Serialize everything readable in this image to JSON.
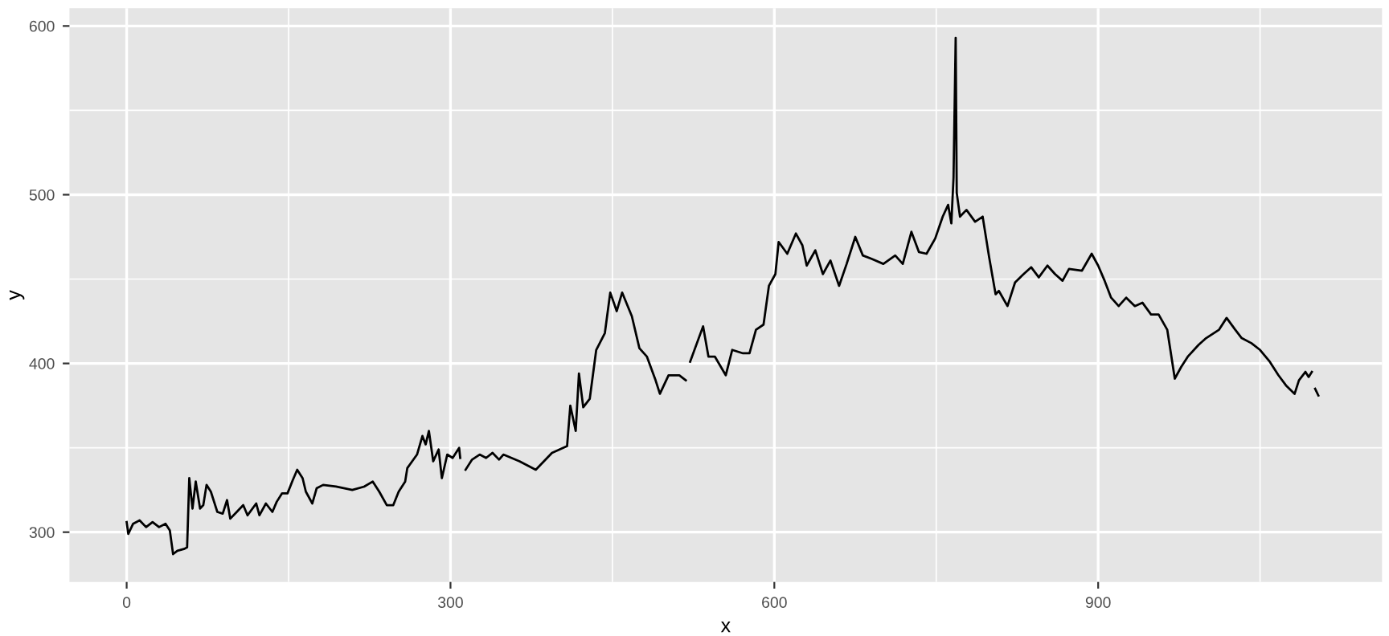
{
  "chart_data": {
    "type": "line",
    "xlabel": "x",
    "ylabel": "y",
    "xlim": [
      -53,
      1163
    ],
    "ylim": [
      270.5,
      610.5
    ],
    "xticks": [
      0,
      300,
      600,
      900
    ],
    "yticks": [
      300,
      400,
      500,
      600
    ],
    "grid": true,
    "legend": false,
    "marker": "none",
    "line_style": "solid",
    "series": [
      {
        "color": "#000000",
        "x": [
          0,
          1.5,
          6,
          12,
          18,
          24,
          30,
          36,
          40,
          43,
          47,
          53,
          56,
          58,
          61,
          64,
          68,
          71,
          74,
          78,
          84,
          89,
          93,
          96,
          102,
          108,
          112,
          120,
          123,
          129,
          135,
          139,
          144,
          149,
          154,
          158,
          163,
          166,
          172,
          176,
          182,
          194,
          209,
          220,
          228,
          234,
          241,
          247,
          252,
          258,
          260,
          269,
          274,
          277,
          280,
          284,
          289,
          292,
          297,
          302,
          308,
          309,
          311,
          314,
          320,
          327,
          333,
          339,
          345,
          349,
          364,
          379,
          394,
          408,
          411,
          416,
          419,
          423,
          429,
          435,
          443,
          448,
          454,
          459,
          468,
          475,
          482,
          490,
          494,
          502,
          512,
          518,
          520,
          522,
          534,
          539,
          545,
          555,
          561,
          571,
          577,
          583,
          590,
          595,
          601,
          604,
          612,
          620,
          626,
          630,
          638,
          645,
          652,
          660,
          667,
          675,
          682,
          690,
          701,
          712,
          719,
          727,
          734,
          741,
          749,
          756,
          761,
          764,
          766,
          768,
          769,
          772,
          778,
          786,
          793,
          799,
          805,
          808,
          816,
          823,
          831,
          838,
          845,
          853,
          860,
          867,
          873,
          885,
          894,
          900,
          906,
          912,
          919,
          926,
          934,
          941,
          949,
          956,
          964,
          971,
          977,
          983,
          993,
          1000,
          1012,
          1019,
          1027,
          1033,
          1042,
          1050,
          1059,
          1067,
          1074,
          1082,
          1086,
          1092,
          1095,
          1098,
          1099,
          1101,
          1104
        ],
        "values": [
          306,
          299,
          305,
          307,
          303,
          306,
          303,
          305,
          301,
          287,
          289,
          290,
          291,
          332,
          314,
          330,
          314,
          316,
          328,
          324,
          312,
          311,
          319,
          308,
          312,
          316,
          310,
          317,
          310,
          317,
          312,
          318,
          323,
          323,
          331,
          337,
          332,
          324,
          317,
          326,
          328,
          327,
          325,
          327,
          330,
          324,
          316,
          316,
          324,
          330,
          338,
          346,
          357,
          352,
          360,
          342,
          349,
          332,
          346,
          344,
          350,
          344,
          null,
          337,
          343,
          346,
          344,
          347,
          343,
          346,
          342,
          337,
          347,
          351,
          375,
          360,
          394,
          374,
          379,
          408,
          418,
          442,
          431,
          442,
          428,
          409,
          404,
          390,
          382,
          393,
          393,
          390,
          null,
          401,
          422,
          404,
          404,
          393,
          408,
          406,
          406,
          420,
          423,
          446,
          453,
          472,
          465,
          477,
          470,
          458,
          467,
          453,
          461,
          446,
          459,
          475,
          464,
          462,
          459,
          464,
          459,
          478,
          466,
          465,
          474,
          487,
          494,
          483,
          510,
          593,
          501,
          487,
          491,
          484,
          487,
          463,
          441,
          443,
          434,
          448,
          453,
          457,
          451,
          458,
          453,
          449,
          456,
          455,
          465,
          458,
          449,
          439,
          434,
          439,
          434,
          436,
          429,
          429,
          420,
          391,
          398,
          404,
          411,
          415,
          420,
          427,
          420,
          415,
          412,
          408,
          401,
          393,
          387,
          382,
          390,
          395,
          392,
          395,
          null,
          385,
          381
        ]
      }
    ]
  }
}
